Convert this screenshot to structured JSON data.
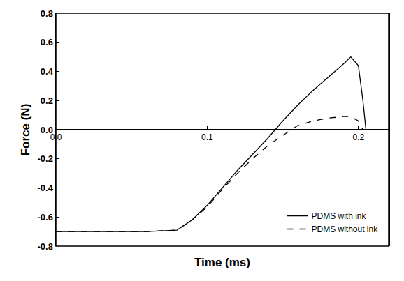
{
  "chart_data": {
    "type": "line",
    "x_label": "Time (ms)",
    "y_label": "Force (N)",
    "x": [
      0,
      0.02,
      0.04,
      0.06,
      0.08,
      0.09,
      0.1,
      0.11,
      0.12,
      0.13,
      0.14,
      0.15,
      0.16,
      0.17,
      0.18,
      0.19,
      0.195,
      0.2,
      0.203,
      0.205
    ],
    "series": [
      {
        "name": "PDMS with ink",
        "color": "#000000",
        "line_style": "solid",
        "values": [
          -0.7,
          -0.7,
          -0.7,
          -0.7,
          -0.69,
          -0.62,
          -0.52,
          -0.4,
          -0.28,
          -0.17,
          -0.06,
          0.06,
          0.17,
          0.27,
          0.36,
          0.45,
          0.5,
          0.44,
          0.2,
          0.0
        ]
      },
      {
        "name": "PDMS without ink",
        "color": "#000000",
        "line_style": "dash",
        "values": [
          -0.7,
          -0.7,
          -0.7,
          -0.7,
          -0.69,
          -0.62,
          -0.53,
          -0.41,
          -0.3,
          -0.2,
          -0.11,
          -0.04,
          0.03,
          0.06,
          0.08,
          0.09,
          0.09,
          0.06,
          0.0,
          null
        ]
      }
    ],
    "xlim": [
      0,
      0.22
    ],
    "xticks": [
      {
        "value": 0,
        "label": "0.0"
      },
      0.1,
      0.2
    ],
    "ylim": [
      -0.8,
      0.8
    ],
    "yticks": [
      -0.8,
      -0.6,
      -0.4,
      -0.2,
      {
        "value": 0,
        "label": "0.0"
      },
      0.2,
      0.4,
      0.6,
      0.8
    ],
    "grid": false,
    "legend": "lower right"
  }
}
